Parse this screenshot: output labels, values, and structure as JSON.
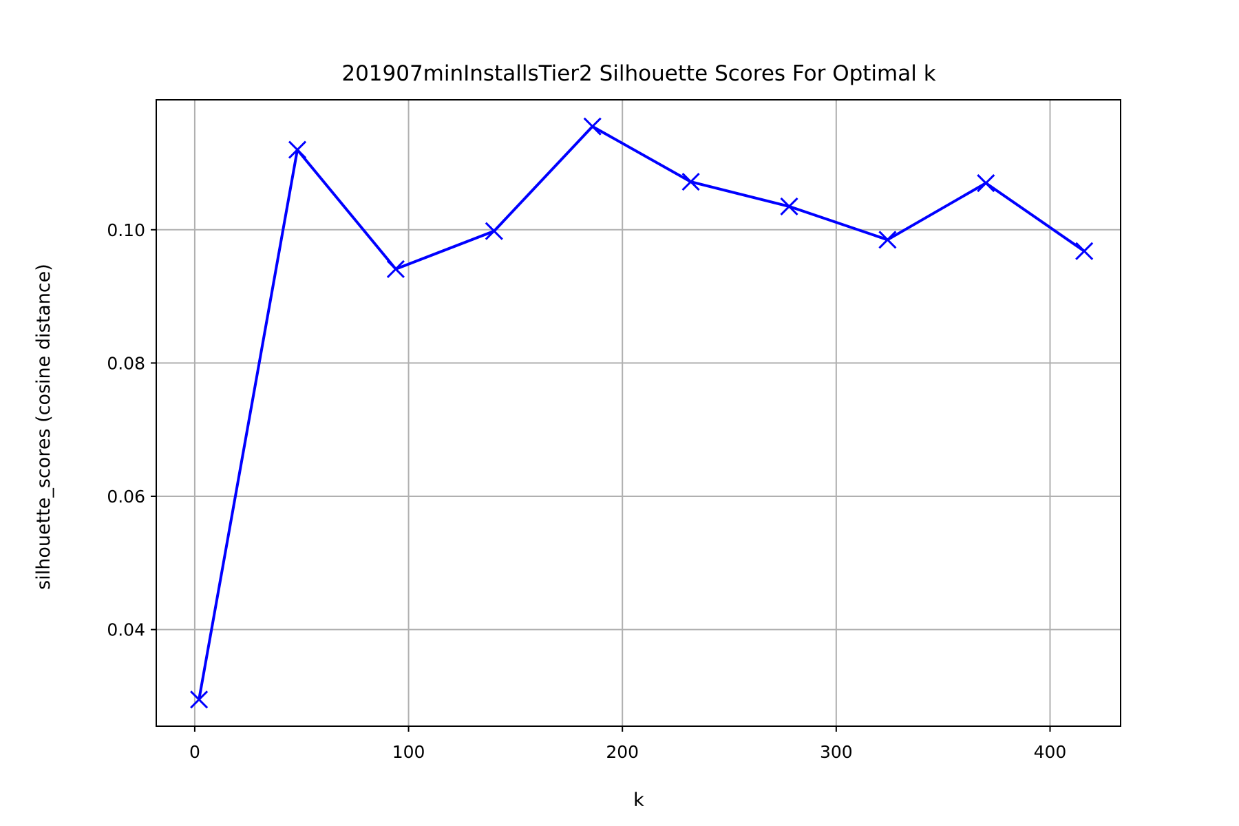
{
  "chart_data": {
    "type": "line",
    "title": "201907minInstallsTier2 Silhouette Scores For Optimal k",
    "xlabel": "k",
    "ylabel": "silhouette_scores (cosine distance)",
    "xlim": [
      -18,
      433
    ],
    "ylim": [
      0.0255,
      0.1195
    ],
    "x_ticks": [
      0,
      100,
      200,
      300,
      400
    ],
    "x_tick_labels": [
      "0",
      "100",
      "200",
      "300",
      "400"
    ],
    "y_ticks": [
      0.04,
      0.06,
      0.08,
      0.1
    ],
    "y_tick_labels": [
      "0.04",
      "0.06",
      "0.08",
      "0.10"
    ],
    "grid": true,
    "marker": "x",
    "line_color": "#0000ff",
    "grid_color": "#b0b0b0",
    "series": [
      {
        "x": [
          2,
          48,
          94,
          140,
          186,
          232,
          278,
          324,
          370,
          416
        ],
        "y": [
          0.0295,
          0.112,
          0.0941,
          0.0998,
          0.1155,
          0.1072,
          0.1035,
          0.0985,
          0.107,
          0.0968
        ]
      }
    ]
  }
}
